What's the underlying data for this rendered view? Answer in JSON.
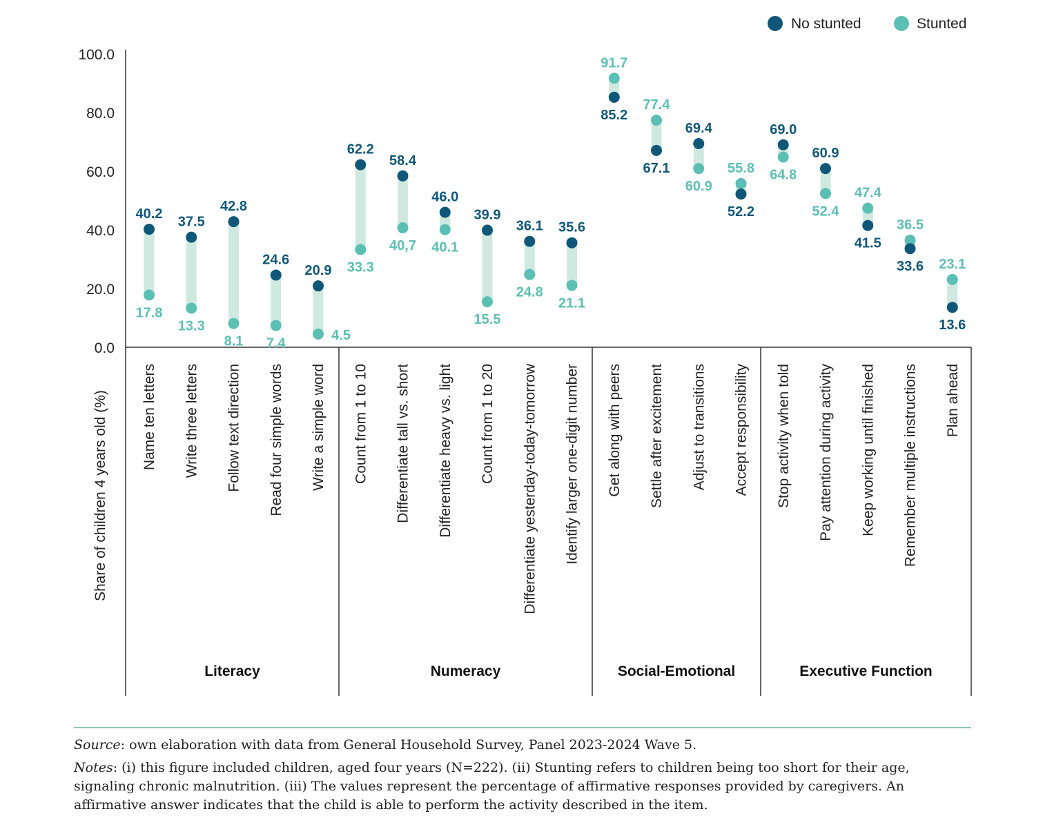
{
  "legend": {
    "no_stunted": "No stunted",
    "stunted": "Stunted"
  },
  "colors": {
    "no_stunted": "#0f5778",
    "stunted": "#5cbfb3",
    "range_bar": "#cfe9e1",
    "axis": "#333333",
    "rule": "#8cc5b8"
  },
  "chart_data": {
    "type": "scatter",
    "subtype": "dumbbell",
    "ylabel": "Share of children 4 years old (%)",
    "ylim": [
      0,
      100
    ],
    "yticks": [
      "0.0",
      "20.0",
      "40.0",
      "60.0",
      "80.0",
      "100.0"
    ],
    "series_names": [
      "No stunted",
      "Stunted"
    ],
    "groups": [
      {
        "name": "Literacy",
        "items": [
          {
            "label": "Name ten letters",
            "no_stunted": 40.2,
            "stunted": 17.8,
            "no_stunted_label": "40.2",
            "stunted_label": "17.8"
          },
          {
            "label": "Write three letters",
            "no_stunted": 37.5,
            "stunted": 13.3,
            "no_stunted_label": "37.5",
            "stunted_label": "13.3"
          },
          {
            "label": "Follow text direction",
            "no_stunted": 42.8,
            "stunted": 8.1,
            "no_stunted_label": "42.8",
            "stunted_label": "8.1"
          },
          {
            "label": "Read four simple words",
            "no_stunted": 24.6,
            "stunted": 7.4,
            "no_stunted_label": "24.6",
            "stunted_label": "7.4"
          },
          {
            "label": "Write a simple word",
            "no_stunted": 20.9,
            "stunted": 4.5,
            "no_stunted_label": "20.9",
            "stunted_label": "4.5"
          }
        ]
      },
      {
        "name": "Numeracy",
        "items": [
          {
            "label": "Count from 1 to 10",
            "no_stunted": 62.2,
            "stunted": 33.3,
            "no_stunted_label": "62.2",
            "stunted_label": "33.3"
          },
          {
            "label": "Differentiate tall vs. short",
            "no_stunted": 58.4,
            "stunted": 40.7,
            "no_stunted_label": "58.4",
            "stunted_label": "40,7"
          },
          {
            "label": "Differentiate heavy vs. light",
            "no_stunted": 46.0,
            "stunted": 40.1,
            "no_stunted_label": "46.0",
            "stunted_label": "40.1"
          },
          {
            "label": "Count from 1 to 20",
            "no_stunted": 39.9,
            "stunted": 15.5,
            "no_stunted_label": "39.9",
            "stunted_label": "15.5"
          },
          {
            "label": "Differentiate yesterday-today-tomorrow",
            "no_stunted": 36.1,
            "stunted": 24.8,
            "no_stunted_label": "36.1",
            "stunted_label": "24.8"
          },
          {
            "label": "Identify larger one-digit number",
            "no_stunted": 35.6,
            "stunted": 21.1,
            "no_stunted_label": "35.6",
            "stunted_label": "21.1"
          }
        ]
      },
      {
        "name": "Social-Emotional",
        "items": [
          {
            "label": "Get along with peers",
            "no_stunted": 85.2,
            "stunted": 91.7,
            "no_stunted_label": "85.2",
            "stunted_label": "91.7"
          },
          {
            "label": "Settle after excitement",
            "no_stunted": 67.1,
            "stunted": 77.4,
            "no_stunted_label": "67.1",
            "stunted_label": "77.4"
          },
          {
            "label": "Adjust to transitions",
            "no_stunted": 69.4,
            "stunted": 60.9,
            "no_stunted_label": "69.4",
            "stunted_label": "60.9"
          },
          {
            "label": "Accept responsibility",
            "no_stunted": 52.2,
            "stunted": 55.8,
            "no_stunted_label": "52.2",
            "stunted_label": "55.8"
          }
        ]
      },
      {
        "name": "Executive Function",
        "items": [
          {
            "label": "Stop activity when told",
            "no_stunted": 69.0,
            "stunted": 64.8,
            "no_stunted_label": "69.0",
            "stunted_label": "64.8"
          },
          {
            "label": "Pay attention during activity",
            "no_stunted": 60.9,
            "stunted": 52.4,
            "no_stunted_label": "60.9",
            "stunted_label": "52.4"
          },
          {
            "label": "Keep working until finished",
            "no_stunted": 41.5,
            "stunted": 47.4,
            "no_stunted_label": "41.5",
            "stunted_label": "47.4"
          },
          {
            "label": "Remember multiple instructions",
            "no_stunted": 33.6,
            "stunted": 36.5,
            "no_stunted_label": "33.6",
            "stunted_label": "36.5"
          },
          {
            "label": "Plan ahead",
            "no_stunted": 13.6,
            "stunted": 23.1,
            "no_stunted_label": "13.6",
            "stunted_label": "23.1"
          }
        ]
      }
    ]
  },
  "footer": {
    "source_label": "Source",
    "source_text": ": own elaboration with data from General Household Survey, Panel 2023-2024 Wave 5.",
    "notes_label": "Notes",
    "notes_text": ": (i) this figure included children, aged four years (N=222). (ii) Stunting refers to children being too short for their age, signaling chronic malnutrition. (iii) The values represent the percentage of affirmative responses provided by caregivers. An affirmative answer indicates that the child is able to perform the activity described in the item."
  }
}
